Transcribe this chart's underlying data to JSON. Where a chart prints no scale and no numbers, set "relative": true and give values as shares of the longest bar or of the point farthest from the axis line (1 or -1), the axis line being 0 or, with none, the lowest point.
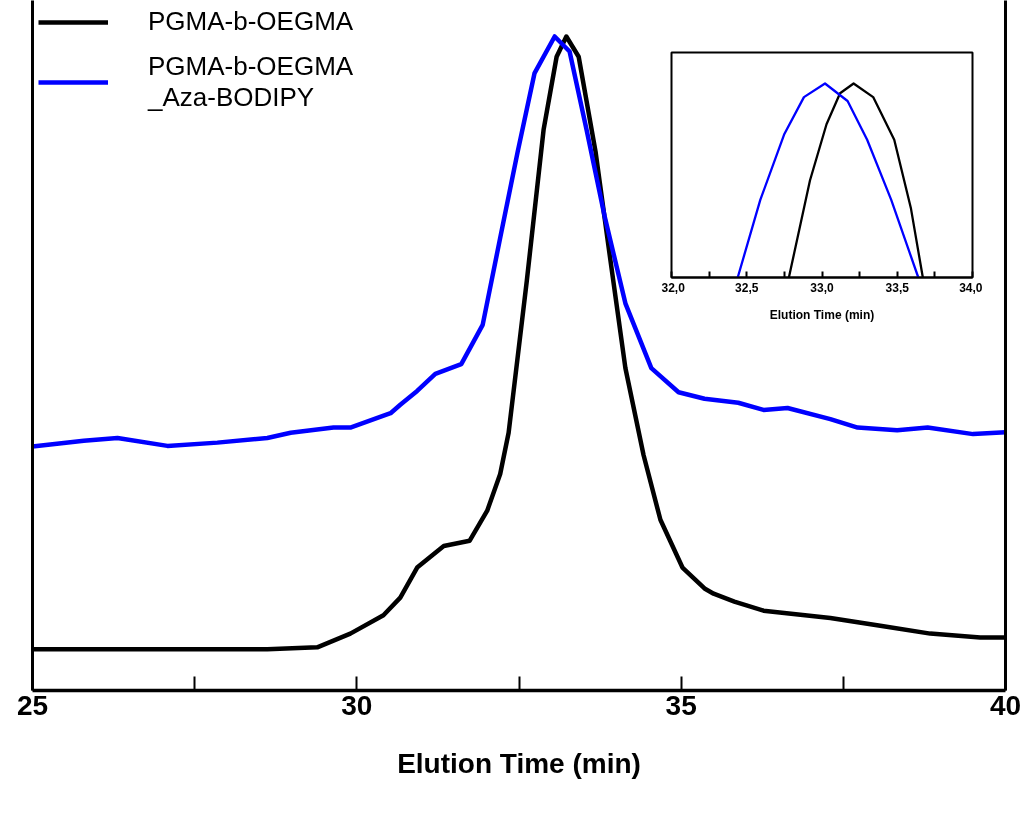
{
  "chart_data": [
    {
      "type": "line",
      "xlabel": "Elution Time (min)",
      "xlim": [
        25,
        40
      ],
      "xticks": [
        25,
        {
          "value": 27.5,
          "label": null
        },
        30,
        {
          "value": 32.5,
          "label": null
        },
        35,
        {
          "value": 37.5,
          "label": null
        },
        40
      ],
      "relative": true,
      "tick_labels": "x",
      "legend": "top left",
      "grid": false,
      "line_style": "solid",
      "series": [
        {
          "name": "PGMA-b-OEGMA",
          "color": "#000000",
          "x": [
            25,
            27,
            28.62,
            29.39,
            29.9,
            30.41,
            30.67,
            30.93,
            31.34,
            31.74,
            32.01,
            32.21,
            32.34,
            32.62,
            32.88,
            33.08,
            33.23,
            33.42,
            33.68,
            33.88,
            34.14,
            34.42,
            34.68,
            35.02,
            35.36,
            35.5,
            35.82,
            36.27,
            37.3,
            38.07,
            38.84,
            39.61,
            40
          ],
          "values": [
            0.063,
            0.063,
            0.063,
            0.066,
            0.087,
            0.115,
            0.142,
            0.188,
            0.221,
            0.229,
            0.275,
            0.331,
            0.394,
            0.626,
            0.858,
            0.969,
            1.0,
            0.969,
            0.824,
            0.679,
            0.493,
            0.36,
            0.261,
            0.188,
            0.156,
            0.148,
            0.136,
            0.122,
            0.111,
            0.099,
            0.087,
            0.081,
            0.081
          ]
        },
        {
          "name": "PGMA-b-OEGMA\n_Aza-BODIPY",
          "color": "#0000ff",
          "x": [
            25,
            25.79,
            26.31,
            27.08,
            27.85,
            28.62,
            28.98,
            29.64,
            29.9,
            30.52,
            30.67,
            30.93,
            31.21,
            31.61,
            31.94,
            32.21,
            32.48,
            32.74,
            33.05,
            33.28,
            33.54,
            33.82,
            34.14,
            34.54,
            34.96,
            35.36,
            35.88,
            36.27,
            36.64,
            37.3,
            37.72,
            38.33,
            38.8,
            39.5,
            40
          ],
          "values": [
            0.373,
            0.382,
            0.386,
            0.374,
            0.379,
            0.386,
            0.394,
            0.402,
            0.402,
            0.424,
            0.437,
            0.458,
            0.484,
            0.499,
            0.559,
            0.692,
            0.824,
            0.944,
            1.0,
            0.977,
            0.858,
            0.725,
            0.592,
            0.493,
            0.456,
            0.446,
            0.44,
            0.429,
            0.432,
            0.415,
            0.402,
            0.398,
            0.402,
            0.392,
            0.395
          ]
        }
      ]
    },
    {
      "type": "line",
      "xlabel": "Elution Time (min)",
      "xlim": [
        32.0,
        34.0
      ],
      "xticks": [
        {
          "value": 32.0,
          "label": "32,0"
        },
        {
          "value": 32.25,
          "label": null
        },
        {
          "value": 32.5,
          "label": "32,5"
        },
        {
          "value": 32.75,
          "label": null
        },
        {
          "value": 33.0,
          "label": "33,0"
        },
        {
          "value": 33.25,
          "label": null
        },
        {
          "value": 33.5,
          "label": "33,5"
        },
        {
          "value": 33.75,
          "label": null
        },
        {
          "value": 34.0,
          "label": "34,0"
        }
      ],
      "relative": true,
      "tick_labels": "x",
      "grid": false,
      "line_style": "solid",
      "series": [
        {
          "color": "#000000",
          "x": [
            32.78,
            32.92,
            33.03,
            33.12,
            33.21,
            33.34,
            33.48,
            33.59,
            33.67
          ],
          "values": [
            0,
            0.5,
            0.79,
            0.95,
            1.0,
            0.93,
            0.71,
            0.36,
            0
          ]
        },
        {
          "color": "#0000ff",
          "x": [
            32.44,
            32.59,
            32.75,
            32.88,
            33.02,
            33.17,
            33.3,
            33.46,
            33.64
          ],
          "values": [
            0,
            0.4,
            0.74,
            0.93,
            1.0,
            0.91,
            0.71,
            0.4,
            0
          ]
        }
      ]
    }
  ]
}
